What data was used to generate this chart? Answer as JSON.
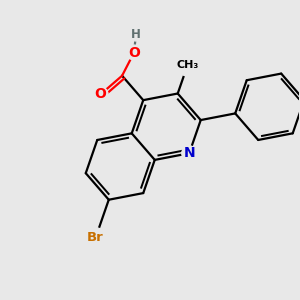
{
  "background_color": "#e8e8e8",
  "atom_colors": {
    "C": "#000000",
    "N": "#0000cc",
    "O": "#ff0000",
    "Br": "#c87000",
    "H": "#607070"
  },
  "bond_color": "#000000",
  "bond_width": 1.6,
  "figsize": [
    3.0,
    3.0
  ],
  "dpi": 100,
  "xlim": [
    -2.2,
    2.2
  ],
  "ylim": [
    -2.2,
    2.2
  ]
}
